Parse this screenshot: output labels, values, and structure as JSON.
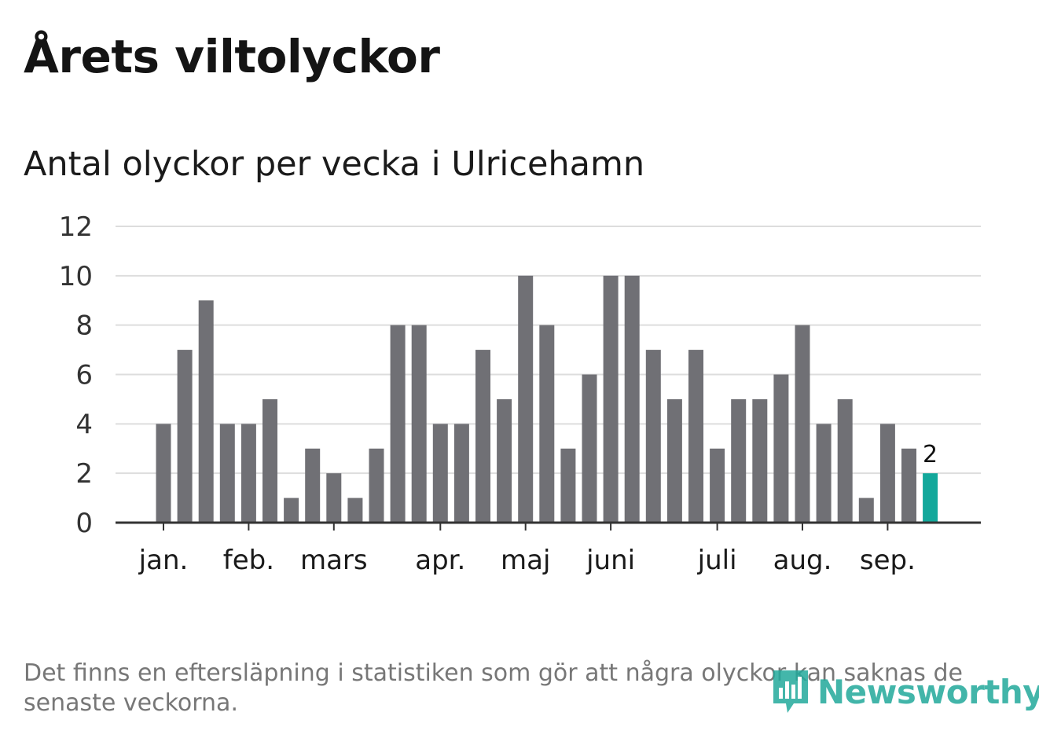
{
  "title": "Årets viltolyckor",
  "subtitle": "Antal olyckor per vecka i Ulricehamn",
  "footnote": "Det finns en eftersläpning i statistiken som gör att några olyckor kan saknas de senaste veckorna.",
  "logo": {
    "text": "Newsworthy",
    "icon": "newsworthy-logo-icon"
  },
  "colors": {
    "bar": "#707075",
    "highlight": "#13a89b",
    "grid": "#dddddd",
    "axis": "#333333",
    "logo": "#22a99b"
  },
  "chart_data": {
    "type": "bar",
    "title": "Antal olyckor per vecka i Ulricehamn",
    "xlabel": "",
    "ylabel": "",
    "ylim": [
      0,
      12
    ],
    "yticks": [
      0,
      2,
      4,
      6,
      8,
      10,
      12
    ],
    "grid": true,
    "categories": [
      "1",
      "2",
      "3",
      "4",
      "5",
      "6",
      "7",
      "8",
      "9",
      "10",
      "11",
      "12",
      "13",
      "14",
      "15",
      "16",
      "17",
      "18",
      "19",
      "20",
      "21",
      "22",
      "23",
      "24",
      "25",
      "26",
      "27",
      "28",
      "29",
      "30",
      "31",
      "32",
      "33",
      "34",
      "35",
      "36",
      "37"
    ],
    "values": [
      4,
      7,
      9,
      4,
      4,
      5,
      1,
      3,
      2,
      1,
      3,
      8,
      8,
      4,
      4,
      7,
      5,
      10,
      8,
      3,
      6,
      10,
      10,
      7,
      5,
      7,
      3,
      5,
      5,
      6,
      8,
      4,
      5,
      1,
      4,
      3,
      2
    ],
    "highlight_last": true,
    "data_labels": [
      {
        "category": "37",
        "text": "2"
      }
    ],
    "month_ticks": [
      {
        "label": "jan.",
        "week": 1
      },
      {
        "label": "feb.",
        "week": 5
      },
      {
        "label": "mars",
        "week": 9
      },
      {
        "label": "apr.",
        "week": 14
      },
      {
        "label": "maj",
        "week": 18
      },
      {
        "label": "juni",
        "week": 22
      },
      {
        "label": "juli",
        "week": 27
      },
      {
        "label": "aug.",
        "week": 31
      },
      {
        "label": "sep.",
        "week": 35
      }
    ]
  }
}
